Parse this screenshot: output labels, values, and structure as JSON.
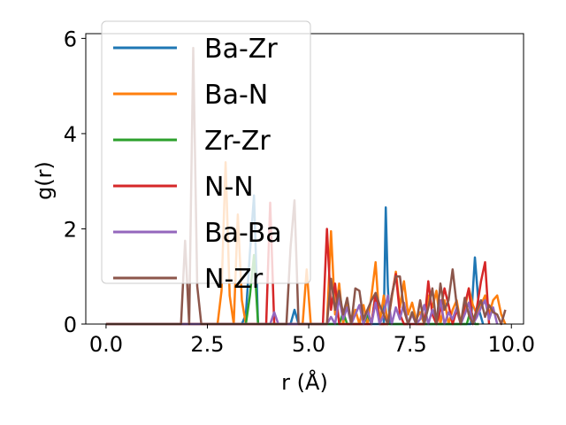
{
  "chart_data": {
    "type": "line",
    "title": "",
    "xlabel": "r (Å)",
    "ylabel": "g(r)",
    "xlim": [
      -0.5,
      10.3
    ],
    "ylim": [
      0,
      6.1
    ],
    "xticks": [
      0.0,
      2.5,
      5.0,
      7.5,
      10.0
    ],
    "xtick_labels": [
      "0.0",
      "2.5",
      "5.0",
      "7.5",
      "10.0"
    ],
    "yticks": [
      0,
      2,
      4,
      6
    ],
    "ytick_labels": [
      "0",
      "2",
      "4",
      "6"
    ],
    "grid": false,
    "legend_position": "upper-left",
    "series": [
      {
        "name": "Ba-Zr",
        "color": "#1f77b4",
        "x": [
          0.0,
          3.35,
          3.45,
          3.55,
          3.65,
          3.75,
          4.55,
          4.65,
          4.75,
          6.85,
          6.9,
          6.95,
          7.0,
          9.0,
          9.1,
          9.2,
          9.3
        ],
        "y": [
          0,
          0,
          0.2,
          1.5,
          2.7,
          0,
          0,
          0.3,
          0,
          0,
          2.45,
          0.8,
          0,
          0,
          1.4,
          0.3,
          0
        ]
      },
      {
        "name": "Ba-N",
        "color": "#ff7f0e",
        "x": [
          0.0,
          2.75,
          2.85,
          2.95,
          3.05,
          3.15,
          3.25,
          3.35,
          3.45,
          3.55,
          4.85,
          4.95,
          5.05,
          5.45,
          5.55,
          5.65,
          5.75,
          5.85,
          5.95,
          6.05,
          6.15,
          6.25,
          6.35,
          6.45,
          6.55,
          6.65,
          6.75,
          6.85,
          6.95,
          7.05,
          7.15,
          7.25,
          7.35,
          7.45,
          7.55,
          7.65,
          7.75,
          7.85,
          7.95,
          8.05,
          8.15,
          8.25,
          8.35,
          8.45,
          8.55,
          8.65,
          8.75,
          8.85,
          8.95,
          9.05,
          9.15,
          9.25,
          9.35,
          9.45,
          9.55,
          9.65,
          9.75,
          9.85
        ],
        "y": [
          0,
          0,
          0.7,
          3.4,
          0.6,
          0,
          2.3,
          0.5,
          0,
          0,
          0,
          1.15,
          0,
          0,
          1.95,
          0.2,
          0.85,
          0,
          0.5,
          0,
          0.3,
          0,
          0.4,
          0,
          0.6,
          1.3,
          0,
          0.6,
          0,
          0.55,
          1.1,
          0.35,
          0.9,
          0.2,
          0.45,
          0.1,
          0.25,
          0,
          0.6,
          0.35,
          0.7,
          0,
          0.5,
          0,
          0.3,
          0.5,
          0,
          0.3,
          0.75,
          0.4,
          0.2,
          0.4,
          0.6,
          0.2,
          0.5,
          0.6,
          0.2,
          0
        ]
      },
      {
        "name": "Zr-Zr",
        "color": "#2ca02c",
        "x": [
          0.0,
          3.45,
          3.55,
          3.65,
          3.75,
          5.75,
          5.85,
          5.95,
          6.35,
          6.45,
          6.55,
          6.65,
          6.75,
          6.85,
          7.45,
          7.55,
          7.65,
          8.9,
          9.0,
          9.1,
          9.2
        ],
        "y": [
          0,
          0,
          0.6,
          1.45,
          0,
          0,
          0.25,
          0,
          0,
          0.2,
          0,
          0.65,
          0,
          0,
          0,
          0.25,
          0,
          0,
          0.3,
          0,
          0
        ]
      },
      {
        "name": "N-N",
        "color": "#d62728",
        "x": [
          0.0,
          3.95,
          4.05,
          4.15,
          5.35,
          5.45,
          5.55,
          5.65,
          5.75,
          6.55,
          6.65,
          6.75,
          6.95,
          7.05,
          7.15,
          7.25,
          7.35,
          7.85,
          7.95,
          8.05,
          8.15,
          8.25,
          8.35,
          8.45,
          8.55,
          8.65,
          8.75,
          8.85,
          8.95,
          9.05,
          9.15,
          9.25,
          9.35,
          9.45
        ],
        "y": [
          0,
          0,
          2.55,
          0,
          0,
          2.0,
          0.3,
          0.85,
          0,
          0,
          0.65,
          0,
          0,
          0.6,
          1.05,
          0.2,
          0,
          0,
          0.9,
          0.2,
          0,
          0.3,
          0.75,
          0.4,
          0,
          0.3,
          0,
          0.4,
          0.75,
          0,
          0.35,
          0.9,
          1.3,
          0
        ]
      },
      {
        "name": "Ba-Ba",
        "color": "#9467bd",
        "x": [
          0.0,
          4.05,
          4.15,
          4.25,
          5.45,
          5.55,
          5.65,
          5.75,
          5.85,
          5.95,
          6.05,
          6.15,
          6.25,
          6.35,
          6.45,
          6.55,
          6.65,
          6.75,
          6.85,
          6.95,
          7.05,
          7.15,
          7.25,
          7.35,
          7.45,
          7.55,
          7.65,
          7.75,
          7.85,
          7.95,
          8.05,
          8.15,
          8.25,
          8.35,
          8.45,
          8.55,
          8.65,
          8.75,
          8.85,
          8.95,
          9.05,
          9.15,
          9.25,
          9.35,
          9.45,
          9.55,
          9.65
        ],
        "y": [
          0,
          0,
          0.25,
          0,
          0,
          0.15,
          0,
          0.55,
          0.1,
          0.35,
          0,
          0.2,
          0.4,
          0,
          0.3,
          0,
          0.45,
          0,
          0.2,
          0.6,
          0,
          0.35,
          0.1,
          0.45,
          0,
          0.2,
          0,
          0.1,
          0.4,
          0,
          0.3,
          0.1,
          0.5,
          0,
          0.25,
          0.1,
          0.35,
          0,
          0.2,
          0.45,
          0,
          0.15,
          0.35,
          0.5,
          0.1,
          0.35,
          0
        ]
      },
      {
        "name": "N-Zr",
        "color": "#8c564b",
        "x": [
          0.0,
          1.85,
          1.95,
          2.05,
          2.15,
          2.25,
          2.35,
          4.45,
          4.55,
          4.65,
          4.75,
          5.45,
          5.55,
          5.65,
          5.75,
          5.85,
          5.95,
          6.05,
          6.15,
          6.25,
          6.35,
          6.45,
          6.55,
          6.65,
          6.75,
          6.85,
          6.95,
          7.05,
          7.15,
          7.25,
          7.35,
          7.45,
          7.55,
          7.65,
          7.75,
          7.85,
          7.95,
          8.05,
          8.15,
          8.25,
          8.35,
          8.45,
          8.55,
          8.65,
          8.75,
          8.85,
          8.95,
          9.05,
          9.15,
          9.25,
          9.35,
          9.45,
          9.55,
          9.65,
          9.75,
          9.85
        ],
        "y": [
          0,
          0,
          1.75,
          0,
          5.8,
          0.8,
          0,
          0,
          1.6,
          2.6,
          0,
          0,
          0.95,
          0.3,
          0.7,
          0.2,
          0.55,
          0,
          0.75,
          0.7,
          0.1,
          0.3,
          0.5,
          0.65,
          0.4,
          0.2,
          0,
          0.6,
          1.0,
          1.0,
          0.3,
          0,
          0.25,
          0,
          0.5,
          0,
          0.35,
          0.75,
          0,
          0.85,
          0.3,
          0.5,
          1.15,
          0.4,
          0,
          0.55,
          0.2,
          0,
          0.3,
          0.5,
          0.15,
          0.4,
          0.25,
          0.2,
          0,
          0.3
        ]
      }
    ]
  }
}
